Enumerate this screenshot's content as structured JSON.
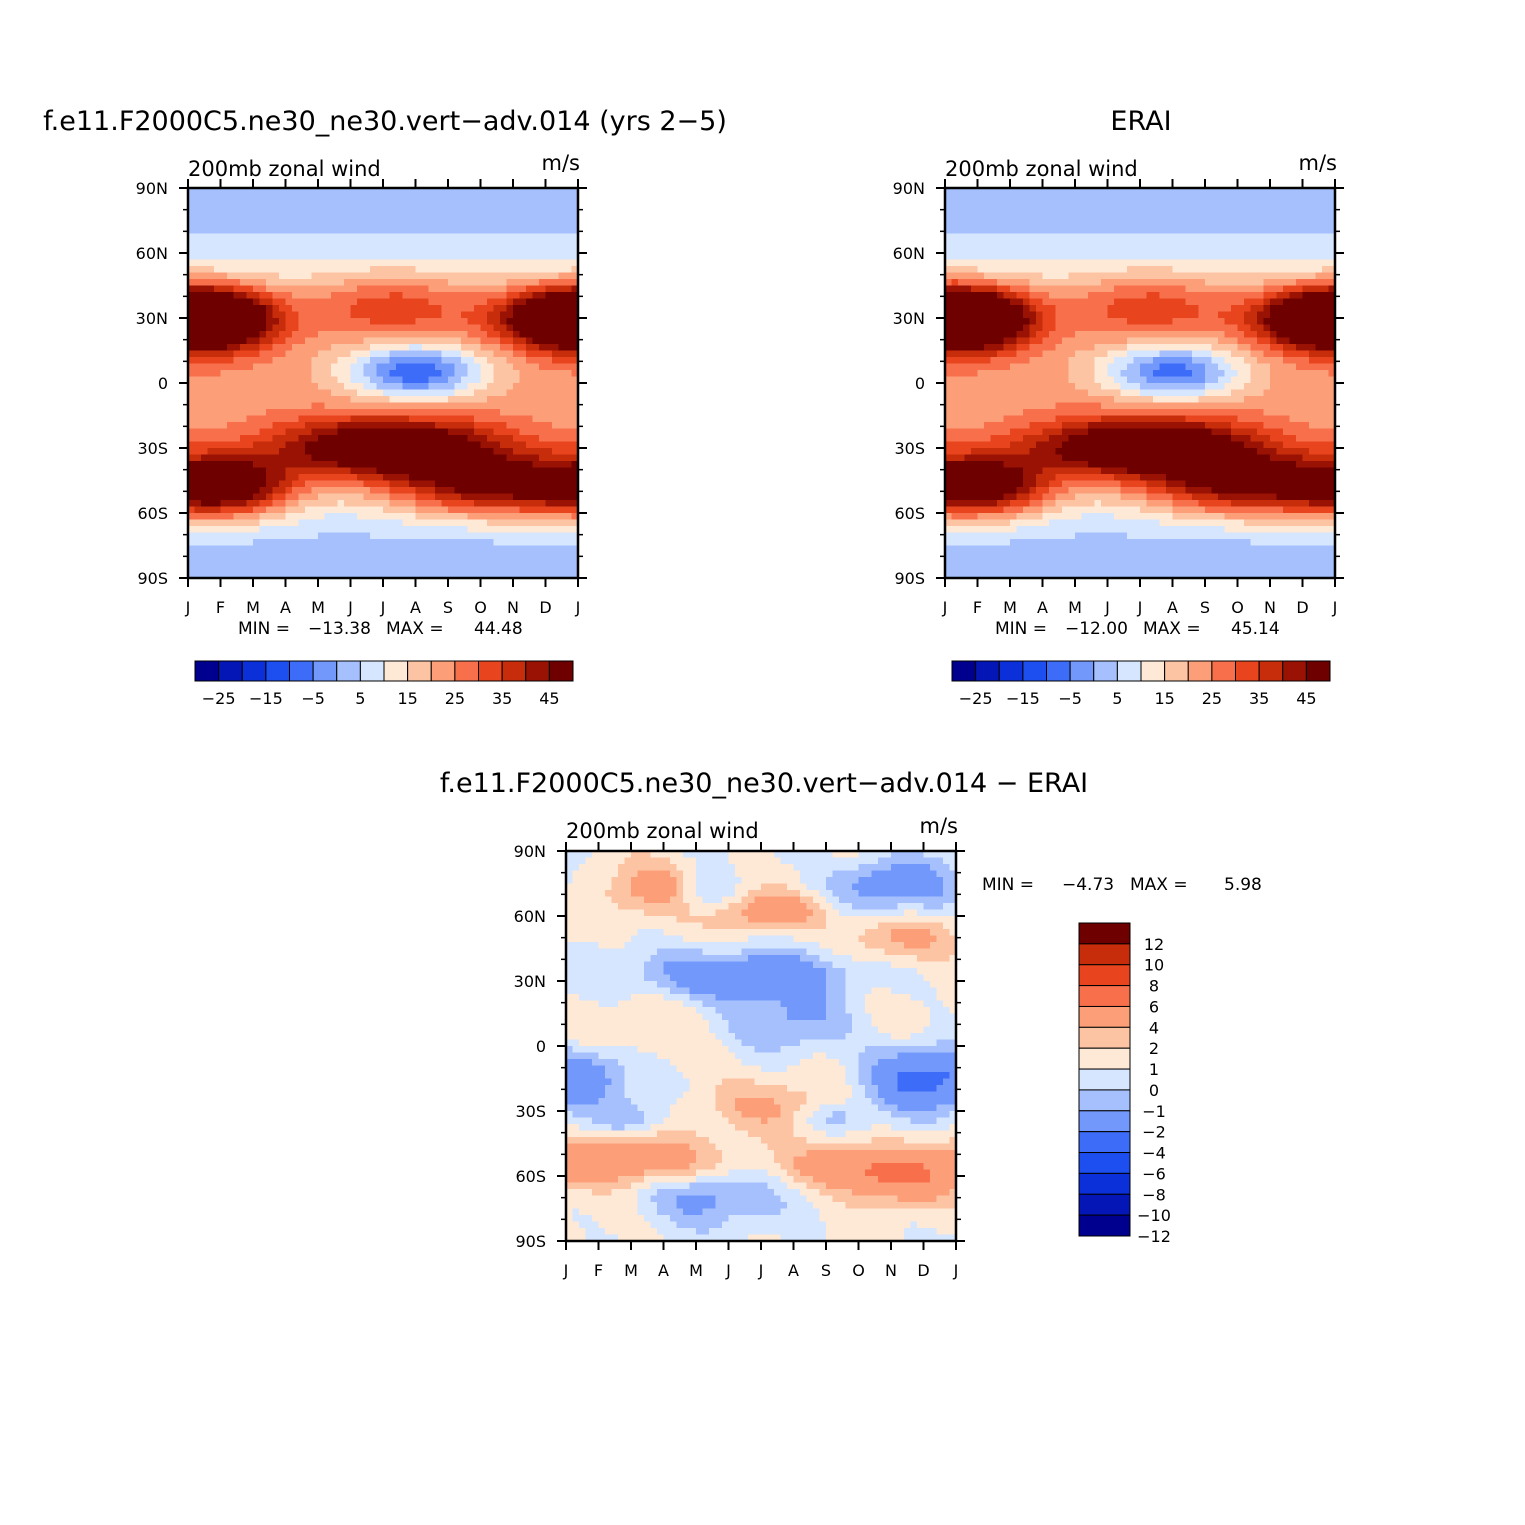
{
  "field_colors_model_obs": [
    "#00008f",
    "#0416b6",
    "#0b2fd8",
    "#1c4ef0",
    "#3d6cf9",
    "#7398fb",
    "#a5c0fd",
    "#d6e6fe",
    "#fee8d6",
    "#fdc4a4",
    "#fc9f79",
    "#f86f4b",
    "#e8451e",
    "#c72d0b",
    "#9a1204",
    "#6e0000"
  ],
  "diff_colors": [
    "#00008f",
    "#0416b6",
    "#0b2fd8",
    "#1c4ef0",
    "#3d6cf9",
    "#7398fb",
    "#a5c0fd",
    "#d6e6fe",
    "#fee8d6",
    "#fdc4a4",
    "#fc9f79",
    "#f86f4b",
    "#e8451e",
    "#c72d0b",
    "#6e0000"
  ],
  "chart_data": [
    {
      "type": "heatmap",
      "title": "f.e11.F2000C5.ne30_ne30.vert−adv.014 (yrs 2−5)",
      "subtitle_left": "200mb zonal wind",
      "subtitle_right": "m/s",
      "x_ticks": [
        "J",
        "F",
        "M",
        "A",
        "M",
        "J",
        "J",
        "A",
        "S",
        "O",
        "N",
        "D",
        "J"
      ],
      "y_ticks": [
        "90N",
        "60N",
        "30N",
        "0",
        "30S",
        "60S",
        "90S"
      ],
      "xlim": [
        0,
        12
      ],
      "ylim": [
        -90,
        90
      ],
      "min_label": "MIN =",
      "min_value": "−13.38",
      "max_label": "MAX =",
      "max_value": "44.48",
      "colorbar_labels": [
        "−25",
        "−15",
        "−5",
        "5",
        "15",
        "25",
        "35",
        "45"
      ],
      "colorbar_label_positions": [
        1,
        3,
        5,
        7,
        9,
        11,
        13,
        15
      ],
      "features": [
        {
          "name": "nh-jet",
          "lat": 30,
          "lon": 1.0,
          "amp": 42,
          "slat": 10,
          "smon": 1.3
        },
        {
          "name": "nh-jet",
          "lat": 30,
          "lon": 11.4,
          "amp": 41,
          "slat": 10,
          "smon": 1.4
        },
        {
          "name": "nh-jet",
          "lat": 36,
          "lon": 6.3,
          "amp": 18,
          "slat": 11,
          "smon": 2.0
        },
        {
          "name": "sh-jet",
          "lat": -30,
          "lon": 6.2,
          "amp": 42,
          "slat": 10,
          "smon": 2.6
        },
        {
          "name": "sh-jet",
          "lat": -48,
          "lon": 1.2,
          "amp": 37,
          "slat": 10,
          "smon": 1.5
        },
        {
          "name": "sh-jet",
          "lat": -48,
          "lon": 9.5,
          "amp": 35,
          "slat": 10,
          "smon": 2.3
        },
        {
          "name": "tropical-easterly",
          "lat": 5,
          "lon": 7.0,
          "amp": -32,
          "slat": 9,
          "smon": 1.5
        }
      ]
    },
    {
      "type": "heatmap",
      "title": "ERAI",
      "subtitle_left": "200mb zonal wind",
      "subtitle_right": "m/s",
      "x_ticks": [
        "J",
        "F",
        "M",
        "A",
        "M",
        "J",
        "J",
        "A",
        "S",
        "O",
        "N",
        "D",
        "J"
      ],
      "y_ticks": [
        "90N",
        "60N",
        "30N",
        "0",
        "30S",
        "60S",
        "90S"
      ],
      "xlim": [
        0,
        12
      ],
      "ylim": [
        -90,
        90
      ],
      "min_label": "MIN =",
      "min_value": "−12.00",
      "max_label": "MAX =",
      "max_value": "45.14",
      "colorbar_labels": [
        "−25",
        "−15",
        "−5",
        "5",
        "15",
        "25",
        "35",
        "45"
      ],
      "colorbar_label_positions": [
        1,
        3,
        5,
        7,
        9,
        11,
        13,
        15
      ],
      "features": [
        {
          "name": "nh-jet",
          "lat": 30,
          "lon": 1.0,
          "amp": 44,
          "slat": 10,
          "smon": 1.3
        },
        {
          "name": "nh-jet",
          "lat": 30,
          "lon": 11.4,
          "amp": 41,
          "slat": 10,
          "smon": 1.4
        },
        {
          "name": "nh-jet",
          "lat": 36,
          "lon": 6.3,
          "amp": 18,
          "slat": 11,
          "smon": 2.0
        },
        {
          "name": "sh-jet",
          "lat": -30,
          "lon": 6.2,
          "amp": 44,
          "slat": 10,
          "smon": 2.6
        },
        {
          "name": "sh-jet",
          "lat": -48,
          "lon": 1.2,
          "amp": 35,
          "slat": 10,
          "smon": 1.5
        },
        {
          "name": "sh-jet",
          "lat": -48,
          "lon": 9.5,
          "amp": 35,
          "slat": 10,
          "smon": 2.3
        },
        {
          "name": "tropical-easterly",
          "lat": 5,
          "lon": 7.0,
          "amp": -30,
          "slat": 9,
          "smon": 1.5
        }
      ]
    },
    {
      "type": "heatmap",
      "title": "f.e11.F2000C5.ne30_ne30.vert−adv.014 − ERAI",
      "subtitle_left": "200mb zonal wind",
      "subtitle_right": "m/s",
      "x_ticks": [
        "J",
        "F",
        "M",
        "A",
        "M",
        "J",
        "J",
        "A",
        "S",
        "O",
        "N",
        "D",
        "J"
      ],
      "y_ticks": [
        "90N",
        "60N",
        "30N",
        "0",
        "30S",
        "60S",
        "90S"
      ],
      "xlim": [
        0,
        12
      ],
      "ylim": [
        -90,
        90
      ],
      "min_label": "MIN =",
      "min_value": "−4.73",
      "max_label": "MAX =",
      "max_value": "5.98",
      "colorbar_levels": [
        "12",
        "10",
        "8",
        "6",
        "4",
        "2",
        "1",
        "0",
        "−1",
        "−2",
        "−4",
        "−6",
        "−8",
        "−10",
        "−12"
      ],
      "features": [
        {
          "name": "pos",
          "lat": 72,
          "lon": 2.8,
          "amp": 3.2,
          "slat": 10,
          "smon": 1.3
        },
        {
          "name": "pos",
          "lat": 62,
          "lon": 6.3,
          "amp": 3.0,
          "slat": 6,
          "smon": 1.1
        },
        {
          "name": "pos",
          "lat": 50,
          "lon": 10.2,
          "amp": 2.7,
          "slat": 8,
          "smon": 1.2
        },
        {
          "name": "neg",
          "lat": 75,
          "lon": 10.0,
          "amp": -3.2,
          "slat": 9,
          "smon": 1.3
        },
        {
          "name": "neg",
          "lat": 70,
          "lon": 4.2,
          "amp": -2.2,
          "slat": 7,
          "smon": 0.7
        },
        {
          "name": "neg",
          "lat": 33,
          "lon": 5.1,
          "amp": -3.8,
          "slat": 8,
          "smon": 2.2
        },
        {
          "name": "neg",
          "lat": 10,
          "lon": 7.0,
          "amp": -2.2,
          "slat": 10,
          "smon": 1.3
        },
        {
          "name": "neg",
          "lat": -15,
          "lon": 10.9,
          "amp": -4.4,
          "slat": 10,
          "smon": 1.2
        },
        {
          "name": "neg",
          "lat": -12,
          "lon": 1.0,
          "amp": -2.2,
          "slat": 9,
          "smon": 0.9
        },
        {
          "name": "neg",
          "lat": -70,
          "lon": 4.2,
          "amp": -2.4,
          "slat": 8,
          "smon": 1.4
        },
        {
          "name": "neg",
          "lat": -33,
          "lon": 2.0,
          "amp": -1.6,
          "slat": 6,
          "smon": 0.8
        },
        {
          "name": "neg",
          "lat": -32,
          "lon": 8.3,
          "amp": -1.8,
          "slat": 5,
          "smon": 0.8
        },
        {
          "name": "pos",
          "lat": -52,
          "lon": 1.7,
          "amp": 3.6,
          "slat": 8,
          "smon": 1.8
        },
        {
          "name": "pos",
          "lat": -55,
          "lon": 8.5,
          "amp": 3.2,
          "slat": 8,
          "smon": 1.4
        },
        {
          "name": "pos",
          "lat": -62,
          "lon": 10.3,
          "amp": 3.0,
          "slat": 8,
          "smon": 1.2
        },
        {
          "name": "pos",
          "lat": -28,
          "lon": 6.5,
          "amp": 1.8,
          "slat": 8,
          "smon": 1.7
        },
        {
          "name": "pos",
          "lat": 0,
          "lon": 3.0,
          "amp": 0.9,
          "slat": 15,
          "smon": 2.0
        }
      ]
    }
  ]
}
